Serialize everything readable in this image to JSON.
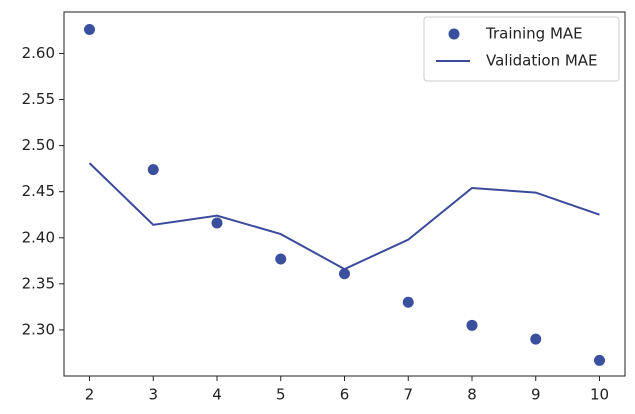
{
  "chart_data": {
    "type": "line",
    "x": [
      2,
      3,
      4,
      5,
      6,
      7,
      8,
      9,
      10
    ],
    "series": [
      {
        "name": "Training MAE",
        "color": "#3b4f9f",
        "style": "points",
        "values": [
          2.626,
          2.474,
          2.416,
          2.377,
          2.361,
          2.33,
          2.305,
          2.29,
          2.267
        ]
      },
      {
        "name": "Validation MAE",
        "color": "#3b4a9b",
        "style": "line",
        "values": [
          2.481,
          2.414,
          2.424,
          2.404,
          2.366,
          2.398,
          2.454,
          2.449,
          2.425
        ]
      }
    ],
    "xlim": [
      1.6,
      10.4
    ],
    "ylim": [
      2.25,
      2.645
    ],
    "xticks": [
      2,
      3,
      4,
      5,
      6,
      7,
      8,
      9,
      10
    ],
    "yticks": [
      {
        "value": 2.3,
        "label": "2.30"
      },
      {
        "value": 2.35,
        "label": "2.35"
      },
      {
        "value": 2.4,
        "label": "2.40"
      },
      {
        "value": 2.45,
        "label": "2.45"
      },
      {
        "value": 2.5,
        "label": "2.50"
      },
      {
        "value": 2.55,
        "label": "2.55"
      },
      {
        "value": 2.6,
        "label": "2.60"
      }
    ],
    "grid": false,
    "legend": "upper right"
  }
}
